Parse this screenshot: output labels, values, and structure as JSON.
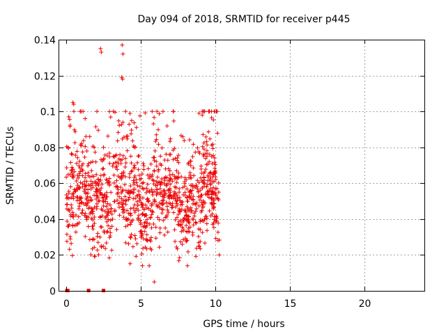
{
  "chart_data": {
    "type": "scatter",
    "title": "Day 094 of 2018, SRMTID for receiver p445",
    "xlabel": "GPS time / hours",
    "ylabel": "SRMTID / TECUs",
    "xlim": [
      0,
      24
    ],
    "ylim": [
      0,
      0.14
    ],
    "xticks": [
      0,
      5,
      10,
      15,
      20
    ],
    "xtick_labels": [
      "0",
      "5",
      "10",
      "15",
      "20"
    ],
    "yticks": [
      0,
      0.02,
      0.04,
      0.06,
      0.08,
      0.1,
      0.12,
      0.14
    ],
    "ytick_labels": [
      "0",
      "0.02",
      "0.04",
      "0.06",
      "0.08",
      "0.1",
      "0.12",
      "0.14"
    ],
    "grid": true,
    "series": [
      {
        "name": "SRMTID",
        "color": "#ee0000",
        "marker": "plus",
        "zero_points": {
          "x": [
            0.05,
            0.1,
            1.5,
            2.5
          ],
          "y": [
            0,
            0,
            0,
            0
          ]
        },
        "x_range_hours": [
          0,
          10.3
        ],
        "y_range_typical": [
          0.015,
          0.1
        ],
        "notable_points": {
          "x": [
            2.3,
            2.35,
            3.75,
            3.8,
            3.72,
            3.78,
            5.9,
            8.9,
            0.45,
            0.5
          ],
          "y": [
            0.135,
            0.133,
            0.137,
            0.132,
            0.119,
            0.118,
            0.005,
            0.099,
            0.105,
            0.104
          ]
        }
      }
    ]
  }
}
